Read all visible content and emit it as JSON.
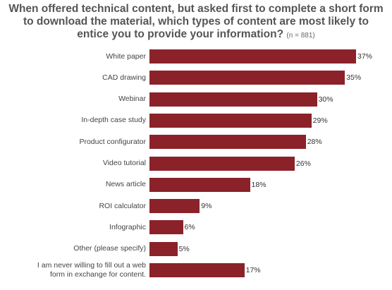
{
  "chart_data": {
    "type": "bar",
    "orientation": "horizontal",
    "title": "When offered technical content, but asked first to complete a short form to download the material, which types of content are most likely to entice you to provide your information?",
    "subtitle": "(n = 881)",
    "categories": [
      "White paper",
      "CAD drawing",
      "Webinar",
      "In-depth case study",
      "Product configurator",
      "Video tutorial",
      "News article",
      "ROI calculator",
      "Infographic",
      "Other (please specify)",
      "I am never willing to fill out a web form in exchange for content."
    ],
    "values": [
      37,
      35,
      30,
      29,
      28,
      26,
      18,
      9,
      6,
      5,
      17
    ],
    "value_labels": [
      "37%",
      "35%",
      "30%",
      "29%",
      "28%",
      "26%",
      "18%",
      "9%",
      "6%",
      "5%",
      "17%"
    ],
    "color": "#8b2229"
  }
}
